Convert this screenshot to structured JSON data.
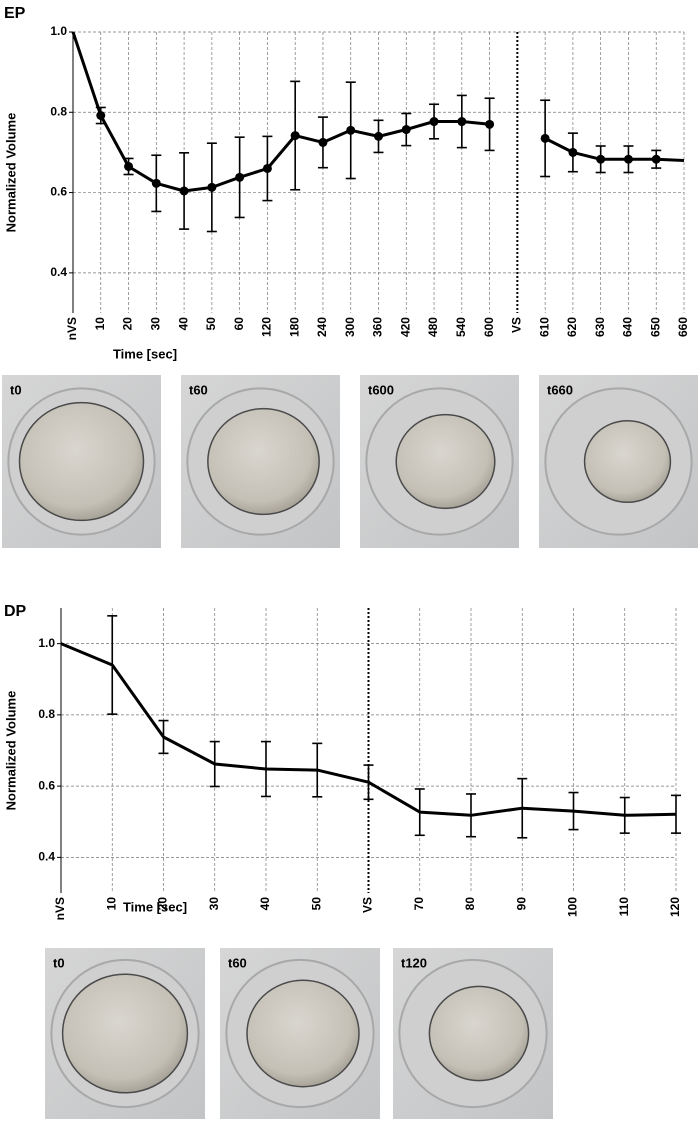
{
  "chart_data": [
    {
      "type": "line",
      "title": "EP",
      "y_label": "Normalized Volume",
      "x_label": "Time [sec]",
      "categories": [
        "nVS",
        "10",
        "20",
        "30",
        "40",
        "50",
        "60",
        "120",
        "180",
        "240",
        "300",
        "360",
        "420",
        "480",
        "540",
        "600",
        "VS",
        "610",
        "620",
        "630",
        "640",
        "650",
        "660"
      ],
      "values": [
        1.0,
        0.792,
        0.665,
        0.623,
        0.604,
        0.613,
        0.638,
        0.66,
        0.742,
        0.725,
        0.755,
        0.74,
        0.757,
        0.777,
        0.777,
        0.77,
        null,
        0.735,
        0.7,
        0.683,
        0.683,
        0.683,
        0.68
      ],
      "errors": [
        null,
        0.02,
        0.02,
        0.07,
        0.095,
        0.11,
        0.1,
        0.08,
        0.135,
        0.063,
        0.12,
        0.04,
        0.04,
        0.043,
        0.065,
        0.065,
        null,
        0.095,
        0.048,
        0.033,
        0.033,
        0.022,
        null
      ],
      "color": "#000000",
      "markers": true,
      "reference_line_x": "VS",
      "ylim": [
        0.3,
        1.0
      ],
      "yticks": [
        0.4,
        0.6,
        0.8,
        {
          "value": 1,
          "label": "1.0"
        }
      ],
      "grid": true,
      "images": [
        "t0",
        "t60",
        "t600",
        "t660"
      ]
    },
    {
      "type": "line",
      "title": "DP",
      "y_label": "Normalized Volume",
      "x_label": "Time [sec]",
      "categories": [
        "nVS",
        "10",
        "20",
        "30",
        "40",
        "50",
        "VS",
        "70",
        "80",
        "90",
        "100",
        "110",
        "120"
      ],
      "values": [
        1.0,
        0.94,
        0.738,
        0.662,
        0.648,
        0.645,
        0.611,
        0.527,
        0.518,
        0.538,
        0.53,
        0.518,
        0.521
      ],
      "errors": [
        null,
        0.138,
        0.046,
        0.063,
        0.077,
        0.075,
        0.048,
        0.065,
        0.06,
        0.083,
        0.052,
        0.05,
        0.053
      ],
      "color": "#000000",
      "markers": false,
      "reference_line_x": "VS",
      "ylim": [
        0.3,
        1.1
      ],
      "yticks": [
        0.4,
        0.6,
        0.8,
        {
          "value": 1,
          "label": "1.0"
        }
      ],
      "grid": true,
      "images": [
        "t0",
        "t60",
        "t120"
      ]
    }
  ]
}
